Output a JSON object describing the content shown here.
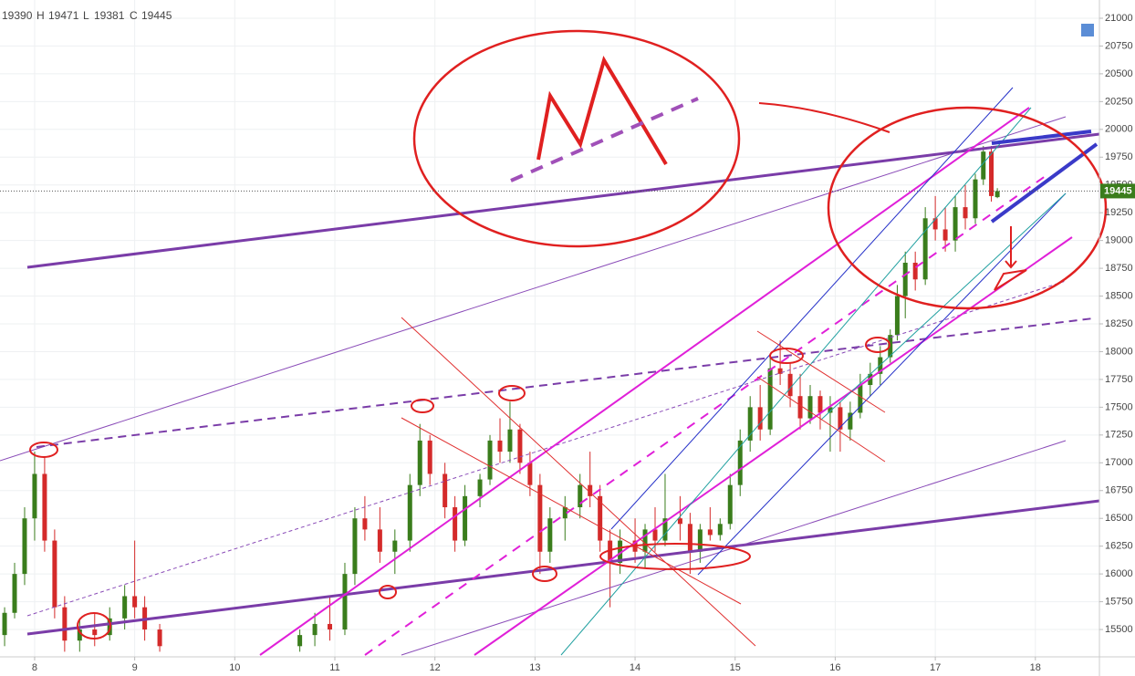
{
  "chart_data": {
    "type": "candlestick",
    "ohlc_labels": [
      "H",
      "L",
      "C"
    ],
    "up_color": "#3a7d1c",
    "down_color": "#d42a2a",
    "grid": true,
    "xlim": [
      7.654,
      18.64
    ],
    "xticks": [
      8,
      9,
      10,
      11,
      12,
      13,
      14,
      15,
      16,
      17,
      18
    ],
    "ylim": [
      15254,
      21164
    ],
    "yticks": [
      15500,
      15750,
      16000,
      16250,
      16500,
      16750,
      17000,
      17250,
      17500,
      17750,
      18000,
      18250,
      18500,
      18750,
      19000,
      19250,
      19500,
      19750,
      20000,
      20250,
      20500,
      20750,
      21000
    ],
    "x": [
      7.7,
      7.8,
      7.9,
      8.0,
      8.1,
      8.2,
      8.3,
      8.45,
      8.6,
      8.75,
      8.9,
      9.0,
      9.1,
      9.25,
      10.65,
      10.8,
      10.95,
      11.1,
      11.2,
      11.3,
      11.45,
      11.6,
      11.75,
      11.85,
      11.95,
      12.1,
      12.2,
      12.3,
      12.45,
      12.55,
      12.65,
      12.75,
      12.85,
      12.95,
      13.05,
      13.15,
      13.3,
      13.45,
      13.55,
      13.65,
      13.75,
      13.85,
      14.0,
      14.1,
      14.2,
      14.3,
      14.45,
      14.55,
      14.65,
      14.75,
      14.85,
      14.95,
      15.05,
      15.15,
      15.25,
      15.35,
      15.45,
      15.55,
      15.65,
      15.75,
      15.85,
      15.95,
      16.05,
      16.15,
      16.25,
      16.35,
      16.45,
      16.55,
      16.62,
      16.7,
      16.8,
      16.9,
      17.0,
      17.1,
      17.2,
      17.3,
      17.4,
      17.48,
      17.56,
      17.62
    ],
    "open": [
      15450,
      15650,
      16000,
      16500,
      16900,
      16300,
      15700,
      15400,
      15500,
      15450,
      15600,
      15800,
      15700,
      15500,
      15350,
      15450,
      15550,
      15500,
      16000,
      16500,
      16400,
      16200,
      16300,
      16800,
      17200,
      16900,
      16600,
      16300,
      16700,
      16850,
      17200,
      17100,
      17300,
      17000,
      16800,
      16200,
      16500,
      16600,
      16800,
      16700,
      16300,
      16100,
      16300,
      16200,
      16400,
      16300,
      16500,
      16450,
      16200,
      16400,
      16350,
      16450,
      16800,
      17200,
      17500,
      17300,
      17850,
      17800,
      17600,
      17400,
      17600,
      17450,
      17500,
      17300,
      17450,
      17700,
      17800,
      17950,
      18150,
      18500,
      18800,
      18650,
      19200,
      19100,
      19000,
      19300,
      19200,
      19550,
      19800,
      19390
    ],
    "high": [
      15700,
      16100,
      16600,
      17100,
      17050,
      16400,
      15800,
      15600,
      15650,
      15700,
      15900,
      16300,
      15800,
      15550,
      15500,
      15650,
      15800,
      16100,
      16600,
      16700,
      16600,
      16400,
      16900,
      17350,
      17250,
      17000,
      16700,
      16800,
      16900,
      17250,
      17400,
      17550,
      17350,
      17100,
      16900,
      16600,
      16700,
      16900,
      17100,
      16800,
      16400,
      16400,
      16500,
      16450,
      16600,
      16900,
      16700,
      16550,
      16450,
      16600,
      16500,
      16900,
      17300,
      17600,
      17700,
      17950,
      18100,
      17900,
      17800,
      17700,
      17650,
      17600,
      17550,
      17550,
      17800,
      17900,
      18050,
      18200,
      18600,
      18900,
      18900,
      19300,
      19400,
      19300,
      19400,
      19500,
      19600,
      19850,
      19850,
      19471
    ],
    "low": [
      15350,
      15600,
      15900,
      16300,
      16200,
      15600,
      15300,
      15300,
      15350,
      15400,
      15500,
      15600,
      15400,
      15300,
      15300,
      15350,
      15400,
      15450,
      15900,
      16300,
      16100,
      16000,
      16200,
      16700,
      16800,
      16500,
      16200,
      16250,
      16600,
      16800,
      17000,
      17000,
      16900,
      16700,
      16000,
      16100,
      16300,
      16500,
      16600,
      16200,
      15700,
      16000,
      16100,
      16050,
      16200,
      16250,
      16300,
      16000,
      16100,
      16300,
      16300,
      16400,
      16700,
      17100,
      17200,
      17250,
      17700,
      17500,
      17300,
      17350,
      17300,
      17100,
      17100,
      17200,
      17400,
      17600,
      17700,
      17900,
      18100,
      18300,
      18550,
      18600,
      19000,
      18900,
      18900,
      19100,
      19150,
      19500,
      19350,
      19381
    ],
    "close": [
      15650,
      16000,
      16500,
      16900,
      16300,
      15700,
      15400,
      15500,
      15450,
      15600,
      15800,
      15700,
      15500,
      15350,
      15450,
      15550,
      15500,
      16000,
      16500,
      16400,
      16200,
      16300,
      16800,
      17200,
      16900,
      16600,
      16300,
      16700,
      16850,
      17200,
      17100,
      17300,
      17000,
      16800,
      16200,
      16500,
      16600,
      16800,
      16700,
      16300,
      16100,
      16300,
      16200,
      16400,
      16300,
      16500,
      16450,
      16200,
      16400,
      16350,
      16450,
      16800,
      17200,
      17500,
      17300,
      17850,
      17800,
      17600,
      17400,
      17600,
      17450,
      17500,
      17300,
      17450,
      17700,
      17800,
      17950,
      18150,
      18500,
      18800,
      18650,
      19200,
      19100,
      19000,
      19300,
      19200,
      19550,
      19800,
      19400,
      19445
    ]
  }
}
